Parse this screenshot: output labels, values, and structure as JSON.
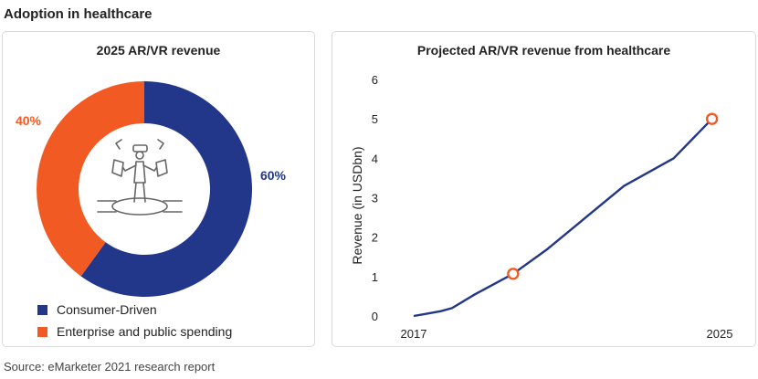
{
  "page": {
    "title": "Adoption in healthcare",
    "source": "Source:  eMarketer 2021 research report"
  },
  "colors": {
    "consumer": "#22368a",
    "enterprise": "#f25a24",
    "line": "#22368a"
  },
  "icon": "vr-headset-person-icon",
  "chart_data": [
    {
      "type": "pie",
      "title": "2025 AR/VR revenue",
      "slices": [
        {
          "label": "Consumer-Driven",
          "value": 60,
          "display": "60%"
        },
        {
          "label": "Enterprise and public spending",
          "value": 40,
          "display": "40%"
        }
      ],
      "legend": [
        "Consumer-Driven",
        "Enterprise and public spending"
      ],
      "legend_position": "bottom-left"
    },
    {
      "type": "line",
      "title": "Projected AR/VR revenue from healthcare",
      "ylabel": "Revenue (in USDbn)",
      "xlabel": "",
      "ylim": [
        0,
        6
      ],
      "yticks": [
        "0",
        "1",
        "2",
        "3",
        "4",
        "5",
        "6"
      ],
      "xlim": [
        2017,
        2025
      ],
      "xticks": [
        "2017",
        "2025"
      ],
      "grid": false,
      "series": [
        {
          "x": [
            2017,
            2017.3,
            2017.7,
            2018,
            2018.6,
            2019.6,
            2020.5,
            2021.5,
            2022.5,
            2023.8,
            2024.8
          ],
          "y": [
            0,
            0.05,
            0.12,
            0.2,
            0.55,
            1.07,
            1.7,
            2.5,
            3.3,
            4.0,
            5.0
          ]
        }
      ],
      "highlight_points": [
        {
          "x": 2019.6,
          "y": 1.07
        },
        {
          "x": 2024.8,
          "y": 5.0
        }
      ]
    }
  ]
}
